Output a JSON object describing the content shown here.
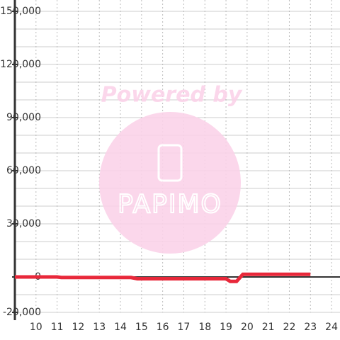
{
  "chart_data": {
    "type": "line",
    "x": [
      9,
      11,
      11.2,
      14.5,
      14.8,
      19,
      19.2,
      19.5,
      19.8,
      23
    ],
    "series": [
      {
        "color": "#e8283a",
        "values": [
          0,
          0,
          -300,
          -300,
          -1000,
          -1000,
          -2500,
          -2500,
          1500,
          1500
        ]
      }
    ],
    "xlim": [
      9,
      24.4
    ],
    "xticks": [
      10,
      11,
      12,
      13,
      14,
      15,
      16,
      17,
      18,
      19,
      20,
      21,
      22,
      23,
      24
    ],
    "ylim": [
      -20000,
      150000
    ],
    "yticks": [
      {
        "value": -20000,
        "label": "-20,000"
      },
      0,
      {
        "value": 30000,
        "label": "30,000"
      },
      {
        "value": 60000,
        "label": "60,000"
      },
      {
        "value": 90000,
        "label": "90,000"
      },
      {
        "value": 120000,
        "label": "120,000"
      },
      {
        "value": 150000,
        "label": "150,000"
      }
    ],
    "y_minor_ticks": [
      -10000,
      10000,
      20000,
      40000,
      50000,
      70000,
      80000,
      100000,
      110000,
      130000,
      140000
    ],
    "grid": true,
    "watermark": {
      "text": "Powered by",
      "logo": "PAPIMO"
    }
  }
}
